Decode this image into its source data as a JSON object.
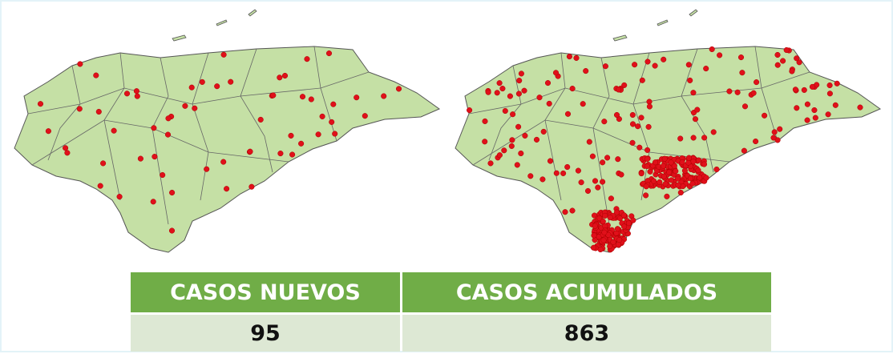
{
  "table": {
    "header": [
      "CASOS NUEVOS",
      "CASOS ACUMULADOS"
    ],
    "rows": [
      [
        "95",
        "863"
      ]
    ]
  }
}
